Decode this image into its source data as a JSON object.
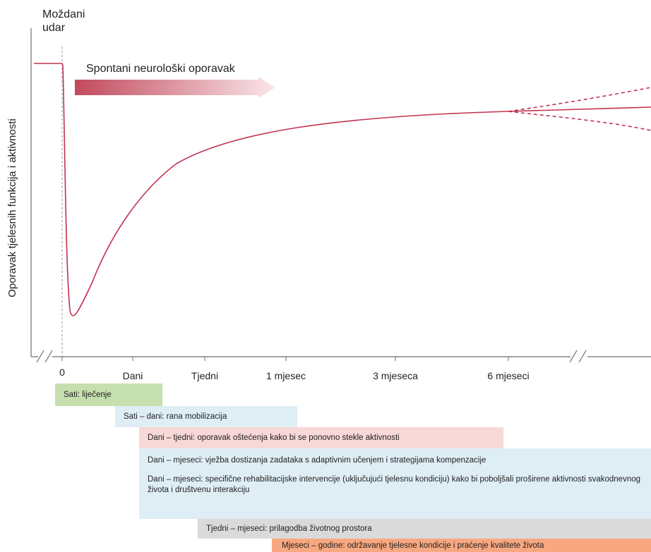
{
  "colors": {
    "curve": "#c2334f",
    "axis": "#6f6f6f",
    "dashed_line": "#8aa0b6",
    "text": "#222222",
    "arrow_start": "#c14a5c",
    "arrow_end": "#fae6ea",
    "bar_green": "#c5dfae",
    "bar_blue": "#dfeef5",
    "bar_pink": "#f8d7d7",
    "bar_grey": "#dadada",
    "bar_orange": "#f7a880"
  },
  "chart_data": {
    "type": "line",
    "title": "",
    "ylabel": "Oporavak tjelesnih funkcija i aktivnosti",
    "xlabel": "",
    "x_ticks": [
      "0",
      "Dani",
      "Tjedni",
      "1 mjesec",
      "3 mjeseca",
      "6 mjeseci"
    ],
    "event_label": "Moždani udar",
    "arrow_label": "Spontani neurološki oporavak",
    "axis_breaks": [
      "before-0",
      "after-6-mjeseci"
    ],
    "baseline_level": 0.9,
    "curve_shape": "sharp drop at stroke onset, minimum shortly after 0, then gradual recovery approaching a plateau near 6 mjeseci, after which the outcome diverges into three possible paths (improve, maintain, decline)",
    "grid": false,
    "legend": "none"
  },
  "phases": [
    {
      "label": "Sati: liječenje",
      "color": "bar_green"
    },
    {
      "label": "Sati – dani: rana mobilizacija",
      "color": "bar_blue"
    },
    {
      "label": "Dani – tjedni: oporavak oštećenja kako bi se ponovno stekle aktivnosti",
      "color": "bar_pink"
    },
    {
      "label": "Dani – mjeseci: vježba dostizanja zadataka s adaptivnim učenjem i strategijama kompenzacije",
      "color": "bar_blue"
    },
    {
      "label": "Dani – mjeseci: specifične rehabilitacijske intervencije (uključujući tjelesnu kondiciju)  kako bi poboljšali proširene aktivnosti svakodnevnog života i društvenu interakciju",
      "color": "bar_blue"
    },
    {
      "label": "Tjedni – mjeseci: prilagodba životnog prostora",
      "color": "bar_grey"
    },
    {
      "label": "Mjeseci – godine: održavanje tjelesne kondicije i praćenje kvalitete života",
      "color": "bar_orange"
    }
  ]
}
